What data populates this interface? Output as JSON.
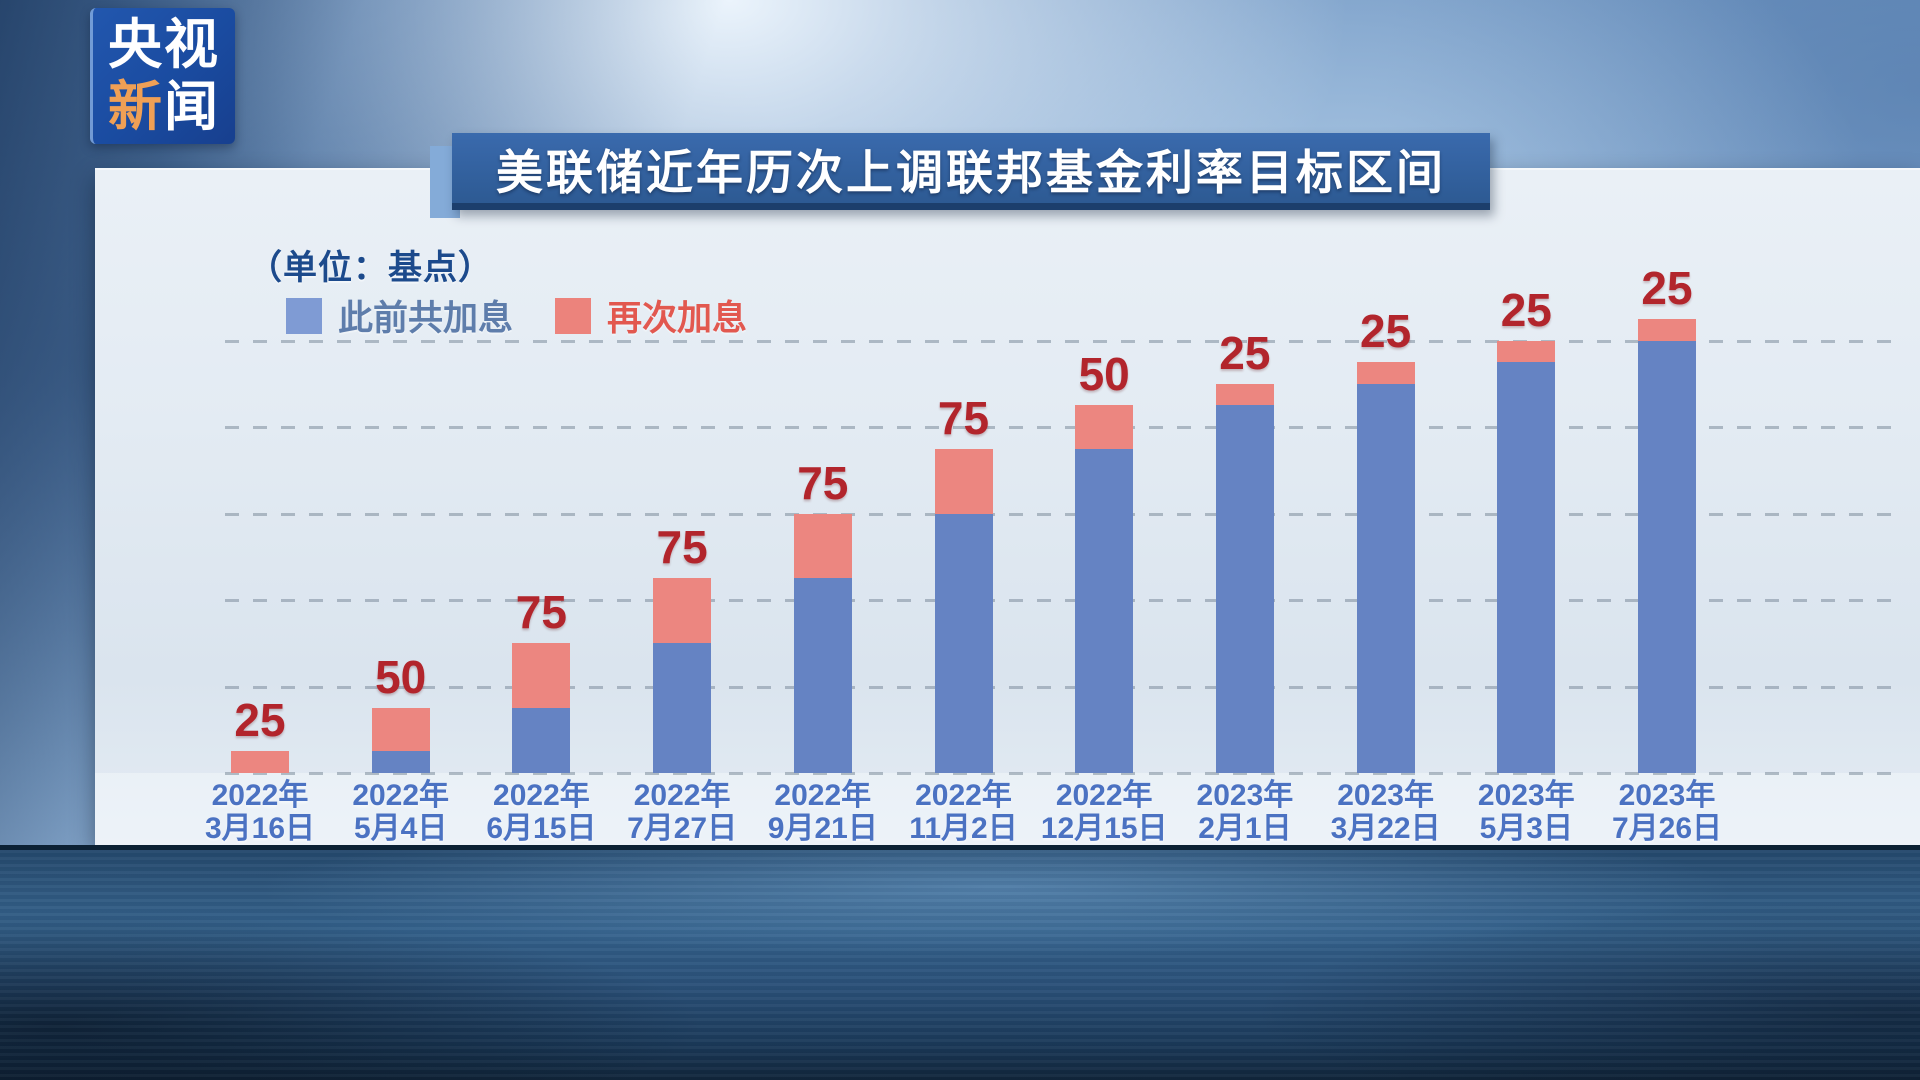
{
  "app": {
    "channel_logo": {
      "line1": "央视",
      "line2_orange": "新",
      "line2_white": "闻"
    }
  },
  "header": {
    "title": "美联储近年历次上调联邦基金利率目标区间"
  },
  "chart_data": {
    "type": "bar",
    "subtype": "stacked",
    "title": "美联储近年历次上调联邦基金利率目标区间",
    "unit_label": "（单位：基点）",
    "unit": "基点",
    "legend_position": "top-left",
    "grid": "dashed-horizontal",
    "axis": {
      "y_min": 0,
      "y_max_gridline": 500,
      "gridline_interval": 100,
      "tick_labels_shown": false
    },
    "legend": [
      {
        "label": "此前共加息",
        "color": "#7f9bd4"
      },
      {
        "label": "再次加息",
        "color": "#ec837c"
      }
    ],
    "categories": [
      [
        "2022年",
        "3月16日"
      ],
      [
        "2022年",
        "5月4日"
      ],
      [
        "2022年",
        "6月15日"
      ],
      [
        "2022年",
        "7月27日"
      ],
      [
        "2022年",
        "9月21日"
      ],
      [
        "2022年",
        "11月2日"
      ],
      [
        "2022年",
        "12月15日"
      ],
      [
        "2023年",
        "2月1日"
      ],
      [
        "2023年",
        "3月22日"
      ],
      [
        "2023年",
        "5月3日"
      ],
      [
        "2023年",
        "7月26日"
      ]
    ],
    "series": [
      {
        "name": "此前共加息",
        "color": "#6583c3",
        "values": [
          0,
          25,
          75,
          150,
          225,
          300,
          375,
          425,
          450,
          475,
          500
        ]
      },
      {
        "name": "再次加息",
        "color": "#ec8680",
        "values": [
          25,
          50,
          75,
          75,
          75,
          75,
          50,
          25,
          25,
          25,
          25
        ]
      }
    ],
    "bar_value_labels": [
      "25",
      "50",
      "75",
      "75",
      "75",
      "75",
      "50",
      "25",
      "25",
      "25",
      "25"
    ],
    "value_label_color": "#b2252c"
  }
}
